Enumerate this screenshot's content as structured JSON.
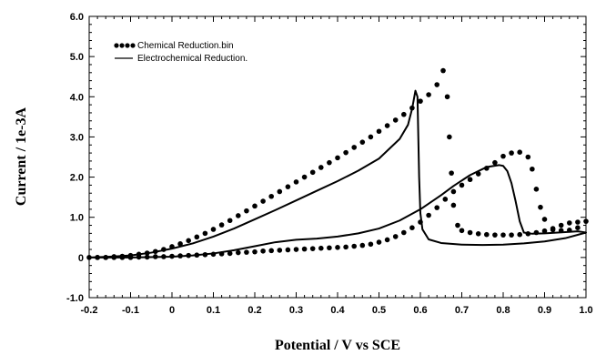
{
  "chart_data": {
    "type": "line",
    "xlabel": "Potential / V vs SCE",
    "ylabel": "Current / 1e-3A",
    "xlim": [
      -0.2,
      1.0
    ],
    "ylim": [
      -1.0,
      6.0
    ],
    "x_ticks": [
      "-0.2",
      "-0.1",
      "0",
      "0.1",
      "0.2",
      "0.3",
      "0.4",
      "0.5",
      "0.6",
      "0.7",
      "0.8",
      "0.9",
      "1.0"
    ],
    "y_ticks": [
      "-1.0",
      "0",
      "1.0",
      "2.0",
      "3.0",
      "4.0",
      "5.0",
      "6.0"
    ],
    "grid": false,
    "legend_position": "top-left",
    "series": [
      {
        "name": "Chemical Reduction.bin",
        "style": "dotted",
        "color": "#000000",
        "points": [
          [
            -0.2,
            0.0
          ],
          [
            -0.18,
            0.0
          ],
          [
            -0.16,
            0.0
          ],
          [
            -0.14,
            0.02
          ],
          [
            -0.12,
            0.03
          ],
          [
            -0.1,
            0.05
          ],
          [
            -0.08,
            0.08
          ],
          [
            -0.06,
            0.11
          ],
          [
            -0.04,
            0.15
          ],
          [
            -0.02,
            0.2
          ],
          [
            0.0,
            0.27
          ],
          [
            0.02,
            0.34
          ],
          [
            0.04,
            0.42
          ],
          [
            0.06,
            0.51
          ],
          [
            0.08,
            0.6
          ],
          [
            0.1,
            0.7
          ],
          [
            0.12,
            0.81
          ],
          [
            0.14,
            0.92
          ],
          [
            0.16,
            1.04
          ],
          [
            0.18,
            1.16
          ],
          [
            0.2,
            1.28
          ],
          [
            0.22,
            1.4
          ],
          [
            0.24,
            1.52
          ],
          [
            0.26,
            1.64
          ],
          [
            0.28,
            1.76
          ],
          [
            0.3,
            1.88
          ],
          [
            0.32,
            2.0
          ],
          [
            0.34,
            2.12
          ],
          [
            0.36,
            2.24
          ],
          [
            0.38,
            2.36
          ],
          [
            0.4,
            2.48
          ],
          [
            0.42,
            2.61
          ],
          [
            0.44,
            2.74
          ],
          [
            0.46,
            2.87
          ],
          [
            0.48,
            3.0
          ],
          [
            0.5,
            3.14
          ],
          [
            0.52,
            3.28
          ],
          [
            0.54,
            3.42
          ],
          [
            0.56,
            3.56
          ],
          [
            0.58,
            3.72
          ],
          [
            0.6,
            3.89
          ],
          [
            0.62,
            4.05
          ],
          [
            0.64,
            4.3
          ],
          [
            0.655,
            4.65
          ],
          [
            0.665,
            4.0
          ],
          [
            0.67,
            3.0
          ],
          [
            0.675,
            2.1
          ],
          [
            0.68,
            1.3
          ],
          [
            0.69,
            0.8
          ],
          [
            0.7,
            0.67
          ],
          [
            0.72,
            0.62
          ],
          [
            0.74,
            0.59
          ],
          [
            0.76,
            0.57
          ],
          [
            0.78,
            0.56
          ],
          [
            0.8,
            0.56
          ],
          [
            0.82,
            0.56
          ],
          [
            0.84,
            0.57
          ],
          [
            0.86,
            0.59
          ],
          [
            0.88,
            0.62
          ],
          [
            0.9,
            0.66
          ],
          [
            0.92,
            0.72
          ],
          [
            0.94,
            0.8
          ],
          [
            0.96,
            0.86
          ],
          [
            0.98,
            0.88
          ],
          [
            1.0,
            0.9
          ],
          [
            0.98,
            0.74
          ],
          [
            0.96,
            0.68
          ],
          [
            0.94,
            0.67
          ],
          [
            0.92,
            0.69
          ],
          [
            0.9,
            0.95
          ],
          [
            0.89,
            1.25
          ],
          [
            0.88,
            1.7
          ],
          [
            0.87,
            2.2
          ],
          [
            0.86,
            2.5
          ],
          [
            0.84,
            2.62
          ],
          [
            0.82,
            2.6
          ],
          [
            0.8,
            2.52
          ],
          [
            0.78,
            2.36
          ],
          [
            0.76,
            2.22
          ],
          [
            0.74,
            2.08
          ],
          [
            0.72,
            1.94
          ],
          [
            0.7,
            1.8
          ],
          [
            0.68,
            1.64
          ],
          [
            0.66,
            1.45
          ],
          [
            0.64,
            1.24
          ],
          [
            0.62,
            1.05
          ],
          [
            0.6,
            0.88
          ],
          [
            0.58,
            0.74
          ],
          [
            0.56,
            0.62
          ],
          [
            0.54,
            0.52
          ],
          [
            0.52,
            0.44
          ],
          [
            0.5,
            0.38
          ],
          [
            0.48,
            0.33
          ],
          [
            0.46,
            0.3
          ],
          [
            0.44,
            0.28
          ],
          [
            0.42,
            0.26
          ],
          [
            0.4,
            0.25
          ],
          [
            0.38,
            0.24
          ],
          [
            0.36,
            0.23
          ],
          [
            0.34,
            0.22
          ],
          [
            0.32,
            0.21
          ],
          [
            0.3,
            0.2
          ],
          [
            0.28,
            0.19
          ],
          [
            0.26,
            0.18
          ],
          [
            0.24,
            0.17
          ],
          [
            0.22,
            0.16
          ],
          [
            0.2,
            0.14
          ],
          [
            0.18,
            0.13
          ],
          [
            0.16,
            0.12
          ],
          [
            0.14,
            0.1
          ],
          [
            0.12,
            0.09
          ],
          [
            0.1,
            0.08
          ],
          [
            0.08,
            0.07
          ],
          [
            0.06,
            0.06
          ],
          [
            0.04,
            0.05
          ],
          [
            0.02,
            0.04
          ],
          [
            0.0,
            0.03
          ],
          [
            -0.02,
            0.02
          ],
          [
            -0.04,
            0.02
          ],
          [
            -0.06,
            0.01
          ],
          [
            -0.08,
            0.01
          ],
          [
            -0.1,
            0.0
          ],
          [
            -0.12,
            0.0
          ],
          [
            -0.14,
            0.0
          ],
          [
            -0.16,
            0.0
          ],
          [
            -0.18,
            0.0
          ]
        ]
      },
      {
        "name": "Electrochemical Reduction.",
        "style": "solid",
        "color": "#000000",
        "points": [
          [
            -0.2,
            0.0
          ],
          [
            -0.15,
            0.02
          ],
          [
            -0.1,
            0.05
          ],
          [
            -0.05,
            0.12
          ],
          [
            0.0,
            0.22
          ],
          [
            0.05,
            0.35
          ],
          [
            0.1,
            0.52
          ],
          [
            0.15,
            0.72
          ],
          [
            0.2,
            0.95
          ],
          [
            0.25,
            1.18
          ],
          [
            0.3,
            1.42
          ],
          [
            0.35,
            1.66
          ],
          [
            0.4,
            1.9
          ],
          [
            0.45,
            2.16
          ],
          [
            0.5,
            2.46
          ],
          [
            0.55,
            2.95
          ],
          [
            0.57,
            3.3
          ],
          [
            0.58,
            3.7
          ],
          [
            0.588,
            4.15
          ],
          [
            0.593,
            4.0
          ],
          [
            0.595,
            3.0
          ],
          [
            0.597,
            2.0
          ],
          [
            0.6,
            1.1
          ],
          [
            0.605,
            0.7
          ],
          [
            0.62,
            0.45
          ],
          [
            0.65,
            0.36
          ],
          [
            0.7,
            0.32
          ],
          [
            0.75,
            0.31
          ],
          [
            0.8,
            0.32
          ],
          [
            0.85,
            0.35
          ],
          [
            0.9,
            0.4
          ],
          [
            0.95,
            0.48
          ],
          [
            1.0,
            0.62
          ],
          [
            0.98,
            0.65
          ],
          [
            0.95,
            0.63
          ],
          [
            0.9,
            0.6
          ],
          [
            0.87,
            0.59
          ],
          [
            0.85,
            0.62
          ],
          [
            0.84,
            0.9
          ],
          [
            0.83,
            1.4
          ],
          [
            0.82,
            1.85
          ],
          [
            0.81,
            2.15
          ],
          [
            0.8,
            2.28
          ],
          [
            0.79,
            2.3
          ],
          [
            0.76,
            2.25
          ],
          [
            0.72,
            2.05
          ],
          [
            0.68,
            1.78
          ],
          [
            0.65,
            1.55
          ],
          [
            0.6,
            1.2
          ],
          [
            0.55,
            0.92
          ],
          [
            0.5,
            0.72
          ],
          [
            0.45,
            0.6
          ],
          [
            0.4,
            0.52
          ],
          [
            0.35,
            0.47
          ],
          [
            0.3,
            0.44
          ],
          [
            0.25,
            0.38
          ],
          [
            0.2,
            0.28
          ],
          [
            0.15,
            0.18
          ],
          [
            0.1,
            0.1
          ],
          [
            0.05,
            0.05
          ],
          [
            0.0,
            0.02
          ],
          [
            -0.1,
            0.0
          ],
          [
            -0.2,
            0.0
          ]
        ]
      }
    ]
  }
}
